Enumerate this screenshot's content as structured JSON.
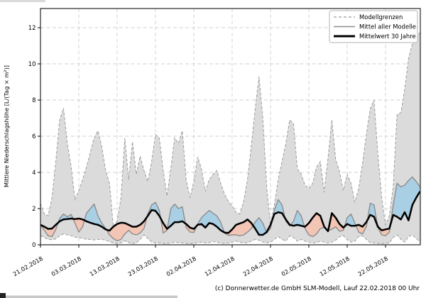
{
  "footer": "(c) Donnerwetter.de GmbH SLM-Modell, Lauf 22.02.2018 00 Uhr",
  "chart_data": {
    "type": "area",
    "title": "",
    "ylabel": "Mittlere Niederschlagshöhe [L/(Tag × m²)]",
    "xlabel": "",
    "ylim": [
      0,
      13.06
    ],
    "yticks": [
      0,
      2,
      4,
      6,
      8,
      10,
      12
    ],
    "grid": true,
    "x_start_date": "21.02.2018",
    "x_days_total": 99,
    "x_tick_days": [
      0,
      10,
      20,
      30,
      40,
      50,
      60,
      70,
      80,
      90
    ],
    "x_tick_labels": [
      "21.02.2018",
      "03.03.2018",
      "13.03.2018",
      "23.03.2018",
      "02.04.2018",
      "12.04.2018",
      "22.04.2018",
      "02.05.2018",
      "12.05.2018",
      "22.05.2018"
    ],
    "legend_position": "top-right",
    "legend": [
      "Modellgrenzen",
      "Mittel aller Modelle",
      "Mittelwert 30 Jahre"
    ],
    "series": [
      {
        "name": "Modellgrenze oben",
        "role": "upper_bound",
        "style": "dashed-gray",
        "values": [
          2.3,
          1.7,
          1.6,
          2.6,
          4.6,
          6.9,
          7.55,
          5.6,
          4.3,
          2.5,
          3.0,
          3.6,
          4.3,
          5.1,
          5.9,
          6.3,
          5.4,
          4.1,
          3.4,
          1.0,
          1.3,
          2.6,
          5.9,
          3.6,
          5.7,
          3.9,
          4.9,
          4.1,
          3.5,
          4.6,
          6.1,
          5.9,
          4.1,
          2.7,
          4.2,
          5.9,
          5.6,
          6.3,
          3.6,
          2.6,
          3.5,
          4.85,
          4.2,
          2.95,
          3.6,
          3.9,
          4.1,
          3.4,
          2.8,
          2.4,
          2.15,
          1.8,
          1.7,
          2.4,
          3.6,
          5.5,
          7.5,
          9.3,
          7.0,
          3.2,
          1.1,
          2.2,
          3.6,
          4.6,
          5.6,
          6.9,
          6.7,
          4.2,
          3.9,
          3.3,
          3.1,
          3.4,
          4.3,
          4.6,
          2.9,
          4.8,
          6.9,
          4.7,
          4.05,
          3.0,
          3.9,
          3.4,
          2.35,
          3.1,
          4.5,
          6.1,
          7.5,
          8.0,
          5.0,
          2.6,
          1.1,
          1.6,
          3.2,
          7.2,
          7.3,
          8.6,
          10.3,
          11.1,
          11.4,
          11.75
        ]
      },
      {
        "name": "Modellgrenze unten",
        "role": "lower_bound",
        "style": "dashed-gray",
        "values": [
          0.5,
          0.4,
          0.3,
          0.28,
          0.32,
          0.5,
          0.6,
          0.55,
          0.5,
          0.42,
          0.4,
          0.36,
          0.3,
          0.3,
          0.27,
          0.3,
          0.3,
          0.25,
          0.18,
          0.1,
          0.06,
          0.1,
          0.22,
          0.12,
          0.06,
          0.1,
          0.3,
          0.55,
          0.35,
          0.15,
          0.1,
          0.1,
          0.08,
          0.06,
          0.1,
          0.15,
          0.12,
          0.1,
          0.08,
          0.06,
          0.08,
          0.12,
          0.15,
          0.1,
          0.12,
          0.18,
          0.15,
          0.1,
          0.08,
          0.1,
          0.15,
          0.2,
          0.15,
          0.1,
          0.12,
          0.2,
          0.3,
          0.25,
          0.15,
          0.1,
          0.15,
          0.3,
          0.45,
          0.3,
          0.2,
          0.5,
          0.4,
          0.2,
          0.3,
          0.2,
          0.15,
          0.1,
          0.12,
          0.2,
          0.15,
          0.1,
          0.15,
          0.25,
          0.45,
          0.5,
          0.3,
          0.15,
          0.2,
          0.45,
          0.5,
          0.3,
          0.12,
          0.1,
          0.08,
          0.06,
          0.08,
          0.1,
          0.4,
          0.55,
          0.3,
          0.15,
          0.45,
          0.55,
          0.35,
          0.15
        ]
      },
      {
        "name": "Mittel aller Modelle",
        "role": "ensemble_mean",
        "style": "solid-gray",
        "values": [
          1.1,
          0.8,
          0.5,
          0.45,
          0.85,
          1.45,
          1.7,
          1.55,
          1.68,
          1.2,
          0.7,
          1.0,
          1.75,
          2.0,
          2.25,
          1.6,
          1.2,
          0.9,
          0.55,
          0.35,
          0.22,
          0.3,
          0.6,
          0.8,
          0.6,
          0.55,
          0.65,
          0.9,
          1.7,
          2.2,
          2.35,
          1.9,
          0.65,
          0.8,
          2.0,
          2.25,
          2.0,
          2.1,
          0.95,
          0.7,
          0.68,
          1.15,
          1.5,
          1.7,
          1.9,
          1.75,
          1.6,
          1.25,
          0.65,
          0.52,
          0.55,
          0.55,
          0.5,
          0.55,
          0.7,
          0.9,
          1.25,
          1.5,
          1.2,
          0.65,
          0.9,
          1.9,
          2.5,
          2.2,
          1.3,
          1.05,
          1.3,
          1.9,
          1.6,
          0.9,
          0.55,
          0.45,
          0.6,
          0.9,
          0.95,
          0.8,
          0.85,
          1.0,
          0.75,
          0.8,
          1.5,
          1.7,
          1.2,
          0.7,
          0.6,
          1.0,
          2.3,
          2.2,
          0.95,
          0.55,
          0.5,
          0.7,
          2.2,
          3.4,
          3.2,
          3.3,
          3.55,
          3.75,
          3.5,
          3.2
        ]
      },
      {
        "name": "Mittelwert 30 Jahre",
        "role": "climate_mean_30y",
        "style": "solid-black-thick",
        "values": [
          1.1,
          1.0,
          0.88,
          0.9,
          1.1,
          1.3,
          1.4,
          1.42,
          1.45,
          1.42,
          1.45,
          1.4,
          1.3,
          1.22,
          1.15,
          1.1,
          1.0,
          0.85,
          0.78,
          1.0,
          1.15,
          1.22,
          1.2,
          1.1,
          1.0,
          1.0,
          1.1,
          1.3,
          1.6,
          1.92,
          1.88,
          1.6,
          1.2,
          0.88,
          1.05,
          1.25,
          1.25,
          1.3,
          1.15,
          0.95,
          0.88,
          1.1,
          1.15,
          0.95,
          1.2,
          1.15,
          1.0,
          0.8,
          0.68,
          0.65,
          0.85,
          1.1,
          1.18,
          1.25,
          1.4,
          1.2,
          0.9,
          0.55,
          0.55,
          0.7,
          1.1,
          1.7,
          1.8,
          1.75,
          1.4,
          1.1,
          1.05,
          1.1,
          1.05,
          1.0,
          1.2,
          1.5,
          1.75,
          1.6,
          1.0,
          0.75,
          1.75,
          1.5,
          1.15,
          0.95,
          1.15,
          1.05,
          1.05,
          1.1,
          1.0,
          1.25,
          1.65,
          1.55,
          1.0,
          0.8,
          0.85,
          0.9,
          1.65,
          1.55,
          1.4,
          1.8,
          1.35,
          2.2,
          2.6,
          2.95
        ]
      }
    ],
    "colors": {
      "band_fill": "#dbdbdb",
      "band_edge": "#9c9c9c",
      "above_normal_fill": "#a9cfe5",
      "below_normal_fill": "#f2c5b5",
      "ensemble_mean_line": "#8c8c8c",
      "climate_mean_line": "#000000",
      "grid": "#cfcfcf"
    }
  }
}
